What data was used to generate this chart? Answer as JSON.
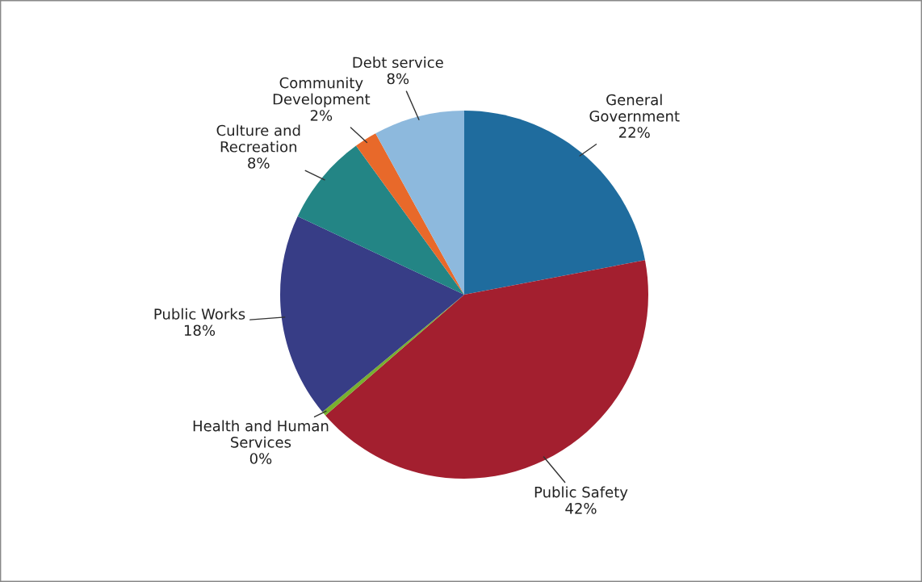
{
  "chart_data": {
    "type": "pie",
    "categories": [
      "General\nGovernment",
      "Public Safety",
      "Health and Human\nServices",
      "Public Works",
      "Culture and\nRecreation",
      "Community\nDevelopment",
      "Debt service"
    ],
    "values": [
      22,
      41.6,
      0.4,
      18,
      8,
      2,
      8
    ],
    "value_labels": [
      "22%",
      "42%",
      "0%",
      "18%",
      "8%",
      "2%",
      "8%"
    ],
    "colors": [
      "#1f6c9e",
      "#a31f2f",
      "#78b02e",
      "#373d86",
      "#238585",
      "#e8692a",
      "#8db9dd"
    ],
    "legend": false
  }
}
